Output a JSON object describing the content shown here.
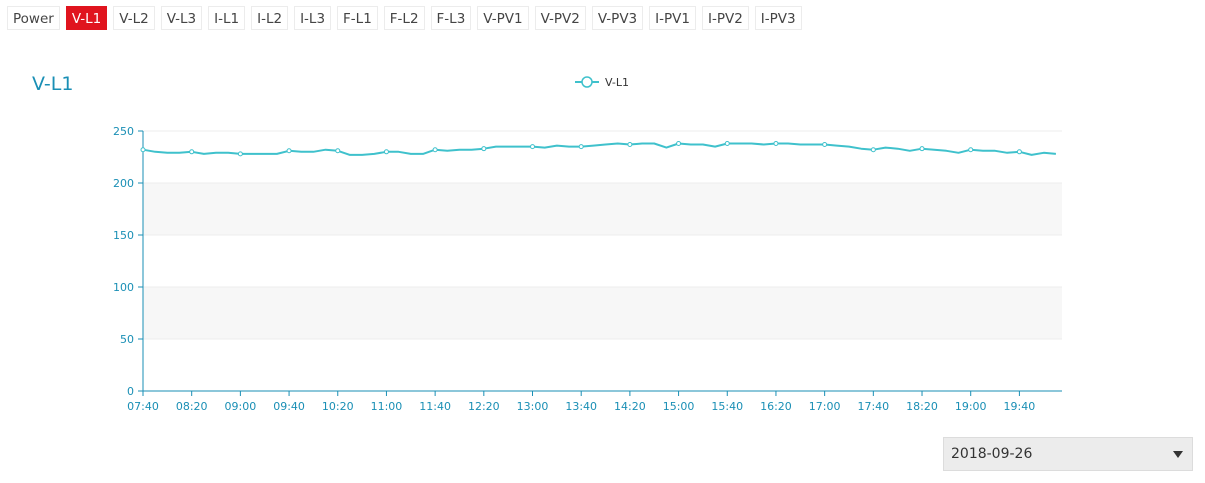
{
  "tabs": [
    {
      "label": "Power",
      "active": false
    },
    {
      "label": "V-L1",
      "active": true
    },
    {
      "label": "V-L2",
      "active": false
    },
    {
      "label": "V-L3",
      "active": false
    },
    {
      "label": "I-L1",
      "active": false
    },
    {
      "label": "I-L2",
      "active": false
    },
    {
      "label": "I-L3",
      "active": false
    },
    {
      "label": "F-L1",
      "active": false
    },
    {
      "label": "F-L2",
      "active": false
    },
    {
      "label": "F-L3",
      "active": false
    },
    {
      "label": "V-PV1",
      "active": false
    },
    {
      "label": "V-PV2",
      "active": false
    },
    {
      "label": "V-PV3",
      "active": false
    },
    {
      "label": "I-PV1",
      "active": false
    },
    {
      "label": "I-PV2",
      "active": false
    },
    {
      "label": "I-PV3",
      "active": false
    }
  ],
  "colors": {
    "active_tab": "#e0141e",
    "series": "#3fc1cc",
    "axis": "#1a8fb5",
    "band": "#f7f7f7"
  },
  "date_select": {
    "value": "2018-09-26"
  },
  "chart_data": {
    "type": "line",
    "title": "V-L1",
    "xlabel": "",
    "ylabel": "",
    "ylim": [
      0,
      250
    ],
    "yticks": [
      0,
      50,
      100,
      150,
      200,
      250
    ],
    "xticks": [
      "07:40",
      "08:20",
      "09:00",
      "09:40",
      "10:20",
      "11:00",
      "11:40",
      "12:20",
      "13:00",
      "13:40",
      "14:20",
      "15:00",
      "15:40",
      "16:20",
      "17:00",
      "17:40",
      "18:20",
      "19:00",
      "19:40"
    ],
    "x_start": "07:40",
    "x_end": "20:15",
    "series": [
      {
        "name": "V-L1",
        "points": [
          [
            "07:40",
            232
          ],
          [
            "07:50",
            230
          ],
          [
            "08:00",
            229
          ],
          [
            "08:10",
            229
          ],
          [
            "08:20",
            230
          ],
          [
            "08:30",
            228
          ],
          [
            "08:40",
            229
          ],
          [
            "08:50",
            229
          ],
          [
            "09:00",
            228
          ],
          [
            "09:10",
            228
          ],
          [
            "09:20",
            228
          ],
          [
            "09:30",
            228
          ],
          [
            "09:40",
            231
          ],
          [
            "09:50",
            230
          ],
          [
            "10:00",
            230
          ],
          [
            "10:10",
            232
          ],
          [
            "10:20",
            231
          ],
          [
            "10:30",
            227
          ],
          [
            "10:40",
            227
          ],
          [
            "10:50",
            228
          ],
          [
            "11:00",
            230
          ],
          [
            "11:10",
            230
          ],
          [
            "11:20",
            228
          ],
          [
            "11:30",
            228
          ],
          [
            "11:40",
            232
          ],
          [
            "11:50",
            231
          ],
          [
            "12:00",
            232
          ],
          [
            "12:10",
            232
          ],
          [
            "12:20",
            233
          ],
          [
            "12:30",
            235
          ],
          [
            "12:40",
            235
          ],
          [
            "12:50",
            235
          ],
          [
            "13:00",
            235
          ],
          [
            "13:10",
            234
          ],
          [
            "13:20",
            236
          ],
          [
            "13:30",
            235
          ],
          [
            "13:40",
            235
          ],
          [
            "13:50",
            236
          ],
          [
            "14:00",
            237
          ],
          [
            "14:10",
            238
          ],
          [
            "14:20",
            237
          ],
          [
            "14:30",
            238
          ],
          [
            "14:40",
            238
          ],
          [
            "14:50",
            234
          ],
          [
            "15:00",
            238
          ],
          [
            "15:10",
            237
          ],
          [
            "15:20",
            237
          ],
          [
            "15:30",
            235
          ],
          [
            "15:40",
            238
          ],
          [
            "15:50",
            238
          ],
          [
            "16:00",
            238
          ],
          [
            "16:10",
            237
          ],
          [
            "16:20",
            238
          ],
          [
            "16:30",
            238
          ],
          [
            "16:40",
            237
          ],
          [
            "16:50",
            237
          ],
          [
            "17:00",
            237
          ],
          [
            "17:10",
            236
          ],
          [
            "17:20",
            235
          ],
          [
            "17:30",
            233
          ],
          [
            "17:40",
            232
          ],
          [
            "17:50",
            234
          ],
          [
            "18:00",
            233
          ],
          [
            "18:10",
            231
          ],
          [
            "18:20",
            233
          ],
          [
            "18:30",
            232
          ],
          [
            "18:40",
            231
          ],
          [
            "18:50",
            229
          ],
          [
            "19:00",
            232
          ],
          [
            "19:10",
            231
          ],
          [
            "19:20",
            231
          ],
          [
            "19:30",
            229
          ],
          [
            "19:40",
            230
          ],
          [
            "19:50",
            227
          ],
          [
            "20:00",
            229
          ],
          [
            "20:10",
            228
          ]
        ]
      }
    ]
  }
}
